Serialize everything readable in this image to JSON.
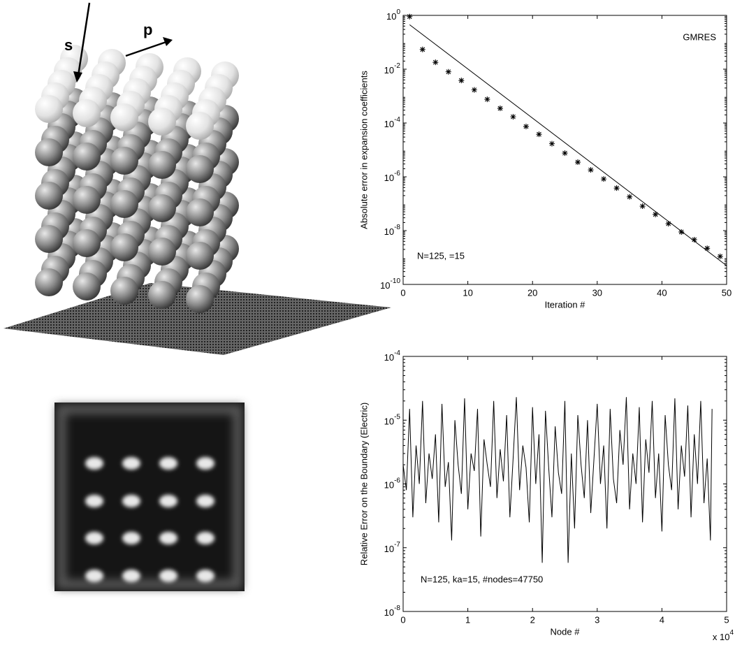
{
  "illustration": {
    "labels": [
      "s",
      "p"
    ]
  },
  "chart_data": [
    {
      "type": "scatter",
      "yscale": "log",
      "ylabel": "Absolute error in expansion coefficients",
      "xlabel": "Iteration #",
      "annotations": [
        "GMRES",
        "N=125,    =15"
      ],
      "xlim": [
        0,
        50
      ],
      "xticks": [
        0,
        10,
        20,
        30,
        40,
        50
      ],
      "ylim": [
        1e-10,
        1
      ],
      "yticks": [
        {
          "value": 1e-10,
          "label": "10^-10"
        },
        {
          "value": 1e-08,
          "label": "10^-8"
        },
        {
          "value": 1e-06,
          "label": "10^-6"
        },
        {
          "value": 0.0001,
          "label": "10^-4"
        },
        {
          "value": 0.01,
          "label": "10^-2"
        },
        {
          "value": 1,
          "label": "10^0"
        }
      ],
      "color": "#000000",
      "markers": {
        "x": [
          1,
          3,
          5,
          7,
          9,
          11,
          13,
          15,
          17,
          19,
          21,
          23,
          25,
          27,
          29,
          31,
          33,
          35,
          37,
          39,
          41,
          43,
          45,
          47,
          49
        ],
        "values": [
          0.9,
          0.054,
          0.018,
          0.008,
          0.0038,
          0.0017,
          0.00076,
          0.00035,
          0.00017,
          7.4e-05,
          3.8e-05,
          1.7e-05,
          7.6e-06,
          3.5e-06,
          1.8e-06,
          8.3e-07,
          3.8e-07,
          1.8e-07,
          8.1e-08,
          4e-08,
          1.8e-08,
          8.9e-09,
          4.6e-09,
          2.2e-09,
          1.1e-09
        ]
      },
      "fit_line": {
        "x": [
          1,
          50
        ],
        "values": [
          0.45,
          5e-10
        ]
      }
    },
    {
      "type": "line",
      "yscale": "log",
      "ylabel": "Relative Error on the Boundary (Electric)",
      "xlabel": "Node #",
      "x_multiplier": "x 10^4",
      "annotations": [
        "N=125, ka=15, #nodes=47750"
      ],
      "xlim": [
        0,
        50000
      ],
      "xticks": [
        0,
        {
          "value": 10000,
          "label": "1"
        },
        {
          "value": 20000,
          "label": "2"
        },
        {
          "value": 30000,
          "label": "3"
        },
        {
          "value": 40000,
          "label": "4"
        },
        {
          "value": 50000,
          "label": "5"
        }
      ],
      "ylim": [
        1e-08,
        0.0001
      ],
      "yticks": [
        {
          "value": 1e-08,
          "label": "10^-8"
        },
        {
          "value": 1e-07,
          "label": "10^-7"
        },
        {
          "value": 1e-06,
          "label": "10^-6"
        },
        {
          "value": 1e-05,
          "label": "10^-5"
        },
        {
          "value": 0.0001,
          "label": "10^-4"
        }
      ],
      "series": [
        {
          "color": "#000000",
          "x": [
            0,
            500,
            1000,
            1500,
            2000,
            2500,
            3000,
            3500,
            4000,
            4500,
            5000,
            5500,
            6000,
            6500,
            7000,
            7500,
            8000,
            8500,
            9000,
            9500,
            10000,
            10500,
            11000,
            11500,
            12000,
            12500,
            13000,
            13500,
            14000,
            14500,
            15000,
            15500,
            16000,
            16500,
            17000,
            17500,
            18000,
            18500,
            19000,
            19500,
            20000,
            20500,
            21000,
            21500,
            22000,
            22500,
            23000,
            23500,
            24000,
            24500,
            25000,
            25500,
            26000,
            26500,
            27000,
            27500,
            28000,
            28500,
            29000,
            29500,
            30000,
            30500,
            31000,
            31500,
            32000,
            32500,
            33000,
            33500,
            34000,
            34500,
            35000,
            35500,
            36000,
            36500,
            37000,
            37500,
            38000,
            38500,
            39000,
            39500,
            40000,
            40500,
            41000,
            41500,
            42000,
            42500,
            43000,
            43500,
            44000,
            44500,
            45000,
            45500,
            46000,
            46500,
            47000,
            47500,
            47750
          ],
          "values": [
            2e-06,
            8e-07,
            1.5e-05,
            3e-07,
            4e-06,
            1e-06,
            2e-05,
            5e-07,
            3e-06,
            1.2e-06,
            6e-06,
            2.5e-07,
            1.8e-05,
            9e-07,
            2.2e-06,
            1.3e-07,
            1e-05,
            2e-06,
            7e-07,
            2.2e-05,
            4e-07,
            3e-06,
            1.6e-06,
            1.5e-05,
            1.5e-07,
            5e-06,
            2e-06,
            9e-07,
            2e-05,
            6e-07,
            3.5e-06,
            1.1e-06,
            1.2e-05,
            3e-07,
            2.5e-06,
            2.3e-05,
            8e-07,
            4e-06,
            1.8e-06,
            2.5e-07,
            1.6e-05,
            1e-06,
            6e-06,
            5.8e-08,
            1.4e-05,
            1.8e-06,
            3e-07,
            8e-06,
            1.5e-06,
            7e-07,
            2e-05,
            5.8e-08,
            3e-06,
            2e-07,
            1.2e-05,
            2e-06,
            6e-07,
            1e-05,
            3.5e-07,
            2.5e-06,
            1.8e-05,
            1e-06,
            4e-06,
            2e-07,
            1.5e-05,
            1.2e-06,
            5e-07,
            7e-06,
            2e-06,
            2.3e-05,
            4e-07,
            3e-06,
            1e-06,
            1.6e-05,
            2.5e-07,
            5e-06,
            1.5e-06,
            2e-05,
            6e-07,
            3e-06,
            1.8e-07,
            1.2e-05,
            2e-06,
            8e-07,
            2.2e-05,
            4e-07,
            4e-06,
            1.3e-06,
            1.7e-05,
            3e-07,
            6e-06,
            1e-06,
            2e-05,
            5e-07,
            2.5e-06,
            1.3e-07,
            1.5e-05
          ]
        }
      ]
    }
  ]
}
